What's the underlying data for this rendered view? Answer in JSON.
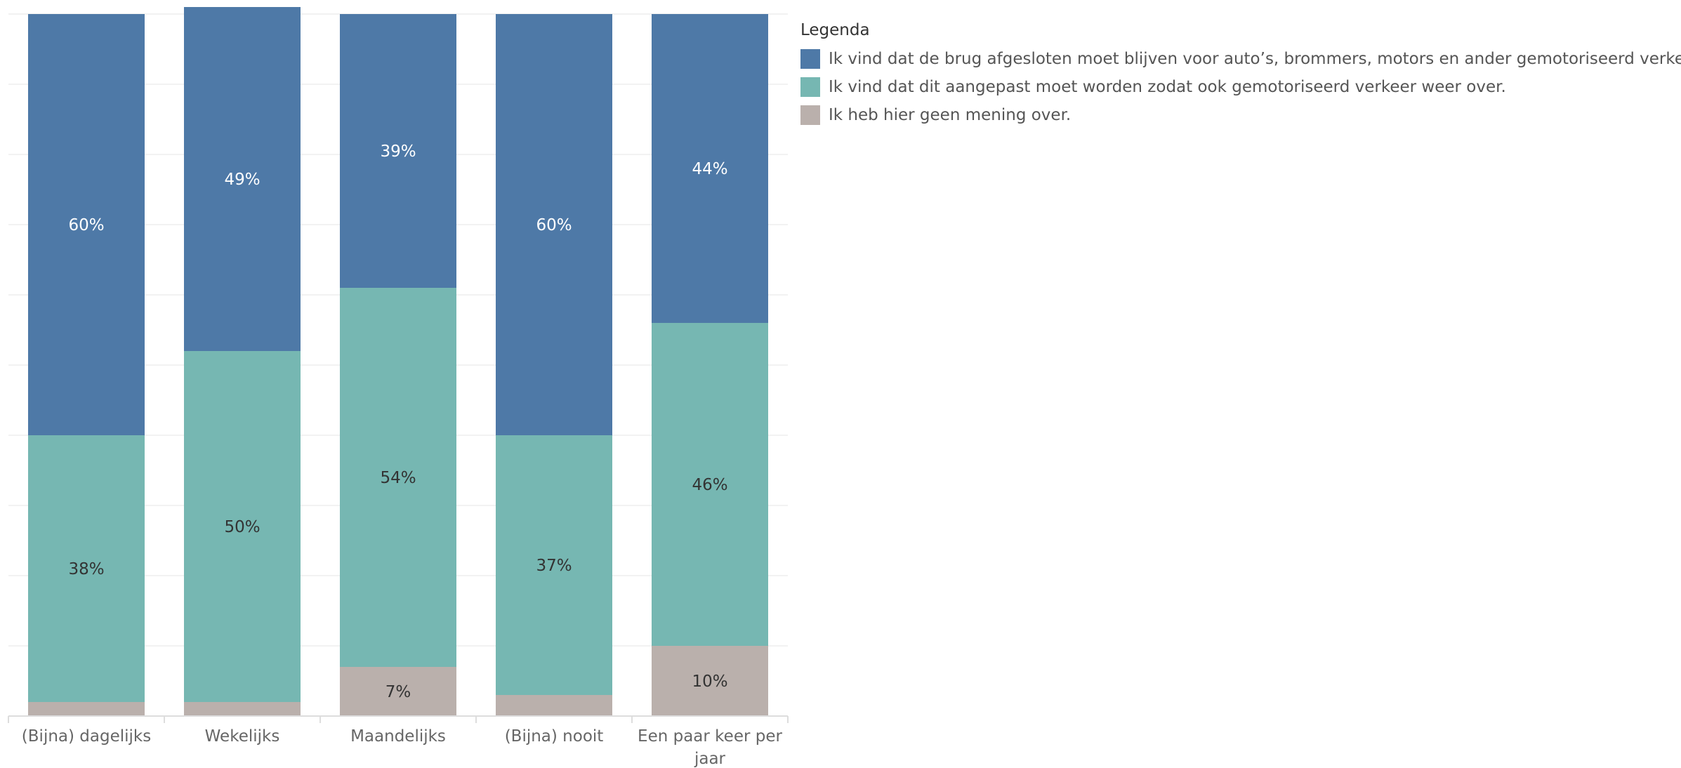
{
  "legend": {
    "title": "Legenda",
    "items": [
      {
        "label": "Ik vind dat de brug afgesloten moet blijven voor auto’s, brommers, motors en ander gemotoriseerd verkeer.",
        "color": "#4E79A7"
      },
      {
        "label": "Ik vind dat dit aangepast moet worden zodat ook gemotoriseerd verkeer weer over.",
        "color": "#76B7B2"
      },
      {
        "label": "Ik heb hier geen mening over.",
        "color": "#BAB0AC"
      }
    ]
  },
  "chart_data": {
    "type": "bar",
    "stacked": true,
    "normalized": true,
    "categories": [
      "(Bijna) dagelijks",
      "Wekelijks",
      "Maandelijks",
      "(Bijna) nooit",
      "Een paar keer per jaar"
    ],
    "series": [
      {
        "name": "Ik heb hier geen mening over.",
        "color": "#BAB0AC",
        "values": [
          2,
          2,
          7,
          3,
          10
        ],
        "labels": [
          "",
          "",
          "7%",
          "",
          "10%"
        ]
      },
      {
        "name": "Ik vind dat dit aangepast moet worden zodat ook gemotoriseerd verkeer weer over.",
        "color": "#76B7B2",
        "values": [
          38,
          50,
          54,
          37,
          46
        ],
        "labels": [
          "38%",
          "50%",
          "54%",
          "37%",
          "46%"
        ]
      },
      {
        "name": "Ik vind dat de brug afgesloten moet blijven voor auto’s, brommers, motors en ander gemotoriseerd verkeer.",
        "color": "#4E79A7",
        "values": [
          60,
          49,
          39,
          60,
          44
        ],
        "labels": [
          "60%",
          "49%",
          "39%",
          "60%",
          "44%"
        ]
      }
    ],
    "ylim": [
      0,
      100
    ],
    "grid": true,
    "legend_position": "right"
  }
}
